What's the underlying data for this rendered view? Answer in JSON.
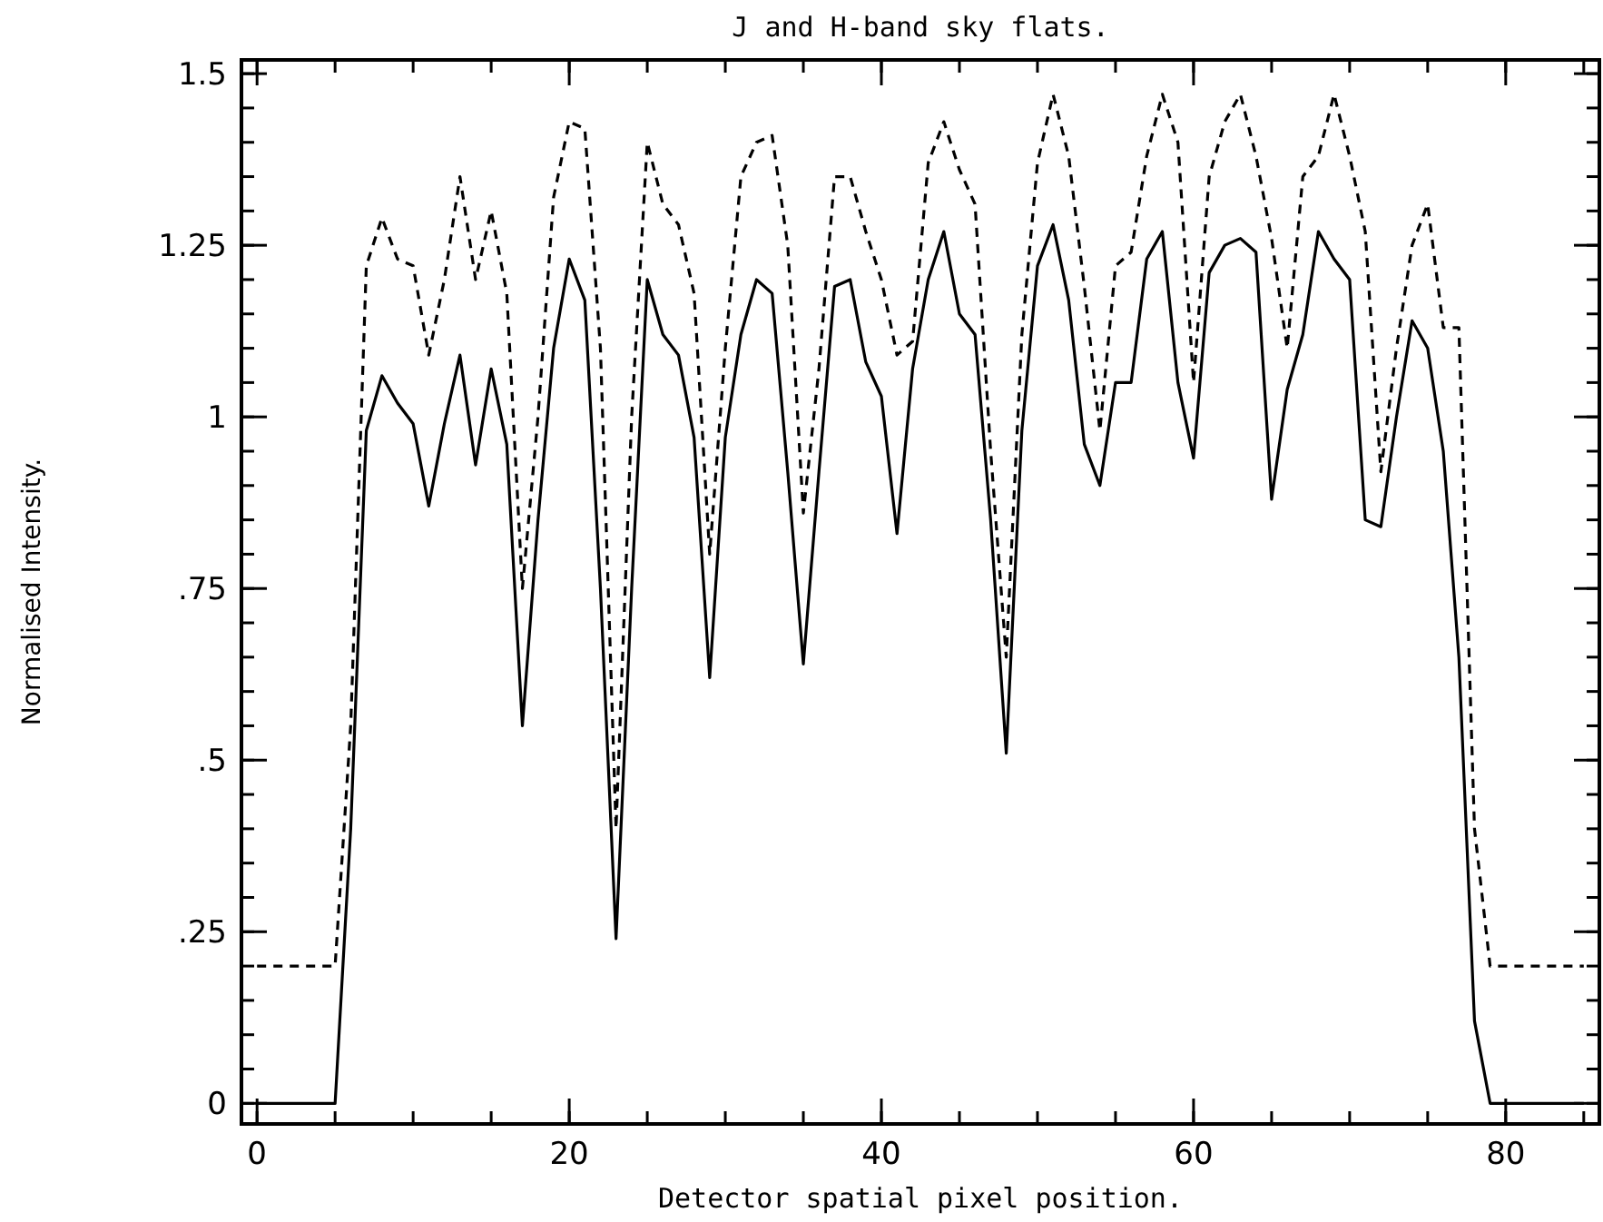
{
  "chart_data": {
    "type": "line",
    "title": "J and H-band sky flats.",
    "xlabel": "Detector spatial pixel position.",
    "ylabel": "Normalised Intensity.",
    "x": [
      0,
      1,
      2,
      3,
      4,
      5,
      6,
      7,
      8,
      9,
      10,
      11,
      12,
      13,
      14,
      15,
      16,
      17,
      18,
      19,
      20,
      21,
      22,
      23,
      24,
      25,
      26,
      27,
      28,
      29,
      30,
      31,
      32,
      33,
      34,
      35,
      36,
      37,
      38,
      39,
      40,
      41,
      42,
      43,
      44,
      45,
      46,
      47,
      48,
      49,
      50,
      51,
      52,
      53,
      54,
      55,
      56,
      57,
      58,
      59,
      60,
      61,
      62,
      63,
      64,
      65,
      66,
      67,
      68,
      69,
      70,
      71,
      72,
      73,
      74,
      75,
      76,
      77,
      78,
      79,
      80,
      81,
      82,
      83,
      84,
      85
    ],
    "series": [
      {
        "color": "#000000",
        "line_style": "solid",
        "values": [
          0,
          0,
          0,
          0,
          0,
          0,
          0.4,
          0.98,
          1.06,
          1.02,
          0.99,
          0.87,
          0.99,
          1.09,
          0.93,
          1.07,
          0.96,
          0.55,
          0.85,
          1.1,
          1.23,
          1.17,
          0.75,
          0.24,
          0.75,
          1.2,
          1.12,
          1.09,
          0.97,
          0.62,
          0.97,
          1.12,
          1.2,
          1.18,
          0.92,
          0.64,
          0.92,
          1.19,
          1.2,
          1.08,
          1.03,
          0.83,
          1.07,
          1.2,
          1.27,
          1.15,
          1.12,
          0.85,
          0.51,
          0.98,
          1.22,
          1.28,
          1.17,
          0.96,
          0.9,
          1.05,
          1.05,
          1.23,
          1.27,
          1.05,
          0.94,
          1.21,
          1.25,
          1.26,
          1.24,
          0.88,
          1.04,
          1.12,
          1.27,
          1.23,
          1.2,
          0.85,
          0.84,
          1.0,
          1.14,
          1.1,
          0.95,
          0.65,
          0.12,
          0,
          0,
          0,
          0,
          0,
          0,
          0
        ]
      },
      {
        "color": "#000000",
        "line_style": "dashed",
        "values": [
          0.2,
          0.2,
          0.2,
          0.2,
          0.2,
          0.2,
          0.55,
          1.22,
          1.29,
          1.23,
          1.22,
          1.09,
          1.2,
          1.35,
          1.2,
          1.3,
          1.18,
          0.75,
          1.0,
          1.32,
          1.43,
          1.42,
          1.1,
          0.4,
          1.0,
          1.4,
          1.31,
          1.28,
          1.18,
          0.8,
          1.1,
          1.35,
          1.4,
          1.41,
          1.25,
          0.86,
          1.07,
          1.35,
          1.35,
          1.27,
          1.2,
          1.09,
          1.11,
          1.37,
          1.43,
          1.36,
          1.31,
          0.95,
          0.65,
          1.12,
          1.37,
          1.47,
          1.38,
          1.19,
          0.98,
          1.22,
          1.24,
          1.38,
          1.47,
          1.4,
          1.05,
          1.35,
          1.43,
          1.47,
          1.38,
          1.26,
          1.1,
          1.35,
          1.38,
          1.47,
          1.38,
          1.27,
          0.92,
          1.1,
          1.25,
          1.31,
          1.13,
          1.13,
          0.4,
          0.2,
          0.2,
          0.2,
          0.2,
          0.2,
          0.2,
          0.2
        ]
      }
    ],
    "xlim": [
      -1,
      86
    ],
    "xticks": [
      0,
      20,
      40,
      60,
      80
    ],
    "ylim": [
      -0.03,
      1.52
    ],
    "yticks": [
      0,
      {
        "value": 0.25,
        "label": ".25"
      },
      {
        "value": 0.5,
        "label": ".5"
      },
      {
        "value": 0.75,
        "label": ".75"
      },
      1,
      1.25,
      1.5
    ],
    "tick_labels": true
  }
}
